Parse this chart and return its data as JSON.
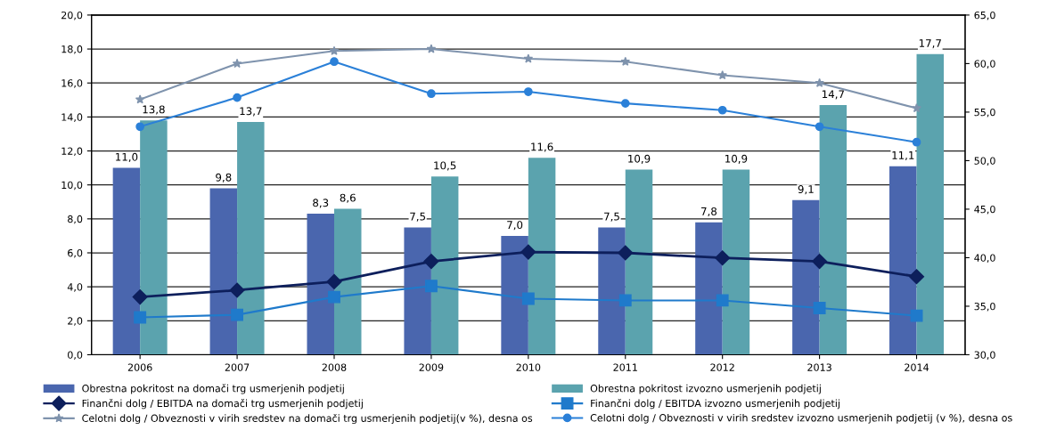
{
  "chart_data": {
    "type": "bar",
    "categories": [
      "2006",
      "2007",
      "2008",
      "2009",
      "2010",
      "2011",
      "2012",
      "2013",
      "2014"
    ],
    "series": [
      {
        "name": "Obrestna pokritost na domači trg usmerjenih podjetij",
        "color": "#4a66ae",
        "values": [
          11.0,
          9.8,
          8.3,
          7.5,
          7.0,
          7.5,
          7.8,
          9.1,
          11.1
        ],
        "value_labels": [
          "11,0",
          "9,8",
          "8,3",
          "7,5",
          "7,0",
          "7,5",
          "7,8",
          "9,1",
          "11,1"
        ]
      },
      {
        "name": "Obrestna pokritost izvozno usmerjenih podjetij",
        "color": "#5ba3ae",
        "values": [
          13.8,
          13.7,
          8.6,
          10.5,
          11.6,
          10.9,
          10.9,
          14.7,
          17.7
        ],
        "value_labels": [
          "13,8",
          "13,7",
          "8,6",
          "10,5",
          "11,6",
          "10,9",
          "10,9",
          "14,7",
          "17,7"
        ]
      },
      {
        "name": "Finančni dolg / EBITDA na domači trg usmerjenih podjetij",
        "type": "line",
        "marker": "diamond",
        "color": "#0d1f5c",
        "values": [
          3.4,
          3.8,
          4.3,
          5.5,
          6.05,
          6.0,
          5.7,
          5.5,
          4.6
        ]
      },
      {
        "name": "Finančni dolg / EBITDA izvozno usmerjenih podjetij",
        "type": "line",
        "marker": "square",
        "color": "#1f7acb",
        "values": [
          2.2,
          2.35,
          3.4,
          4.05,
          3.3,
          3.2,
          3.2,
          2.75,
          2.3
        ]
      },
      {
        "name": "Celotni dolg / Obveznosti v virih sredstev na domači trg usmerjenih podjetij(v %), desna os",
        "type": "line",
        "marker": "star",
        "axis": "y2",
        "color": "#7f93ad",
        "values": [
          56.3,
          60.0,
          61.3,
          61.5,
          60.5,
          60.2,
          58.8,
          58.0,
          55.4
        ]
      },
      {
        "name": "Celotni dolg / Obveznosti v virih sredstev izvozno usmerjenih podjetij (v %), desna os",
        "type": "line",
        "marker": "circle",
        "axis": "y2",
        "color": "#2b80d8",
        "values": [
          53.5,
          56.5,
          60.2,
          56.9,
          57.1,
          55.9,
          55.2,
          53.5,
          51.9
        ]
      }
    ],
    "ylim": [
      0,
      20
    ],
    "yticks": [
      {
        "value": 0,
        "label": "0,0"
      },
      {
        "value": 2,
        "label": "2,0"
      },
      {
        "value": 4,
        "label": "4,0"
      },
      {
        "value": 6,
        "label": "6,0"
      },
      {
        "value": 8,
        "label": "8,0"
      },
      {
        "value": 10,
        "label": "10,0"
      },
      {
        "value": 12,
        "label": "12,0"
      },
      {
        "value": 14,
        "label": "14,0"
      },
      {
        "value": 16,
        "label": "16,0"
      },
      {
        "value": 18,
        "label": "18,0"
      },
      {
        "value": 20,
        "label": "20,0"
      }
    ],
    "y2lim": [
      30,
      65
    ],
    "y2ticks": [
      {
        "value": 30,
        "label": "30,0"
      },
      {
        "value": 35,
        "label": "35,0"
      },
      {
        "value": 40,
        "label": "40,0"
      },
      {
        "value": 45,
        "label": "45,0"
      },
      {
        "value": 50,
        "label": "50,0"
      },
      {
        "value": 55,
        "label": "55,0"
      },
      {
        "value": 60,
        "label": "60,0"
      },
      {
        "value": 65,
        "label": "65,0"
      }
    ],
    "grid": "y",
    "legend": "bottom"
  }
}
